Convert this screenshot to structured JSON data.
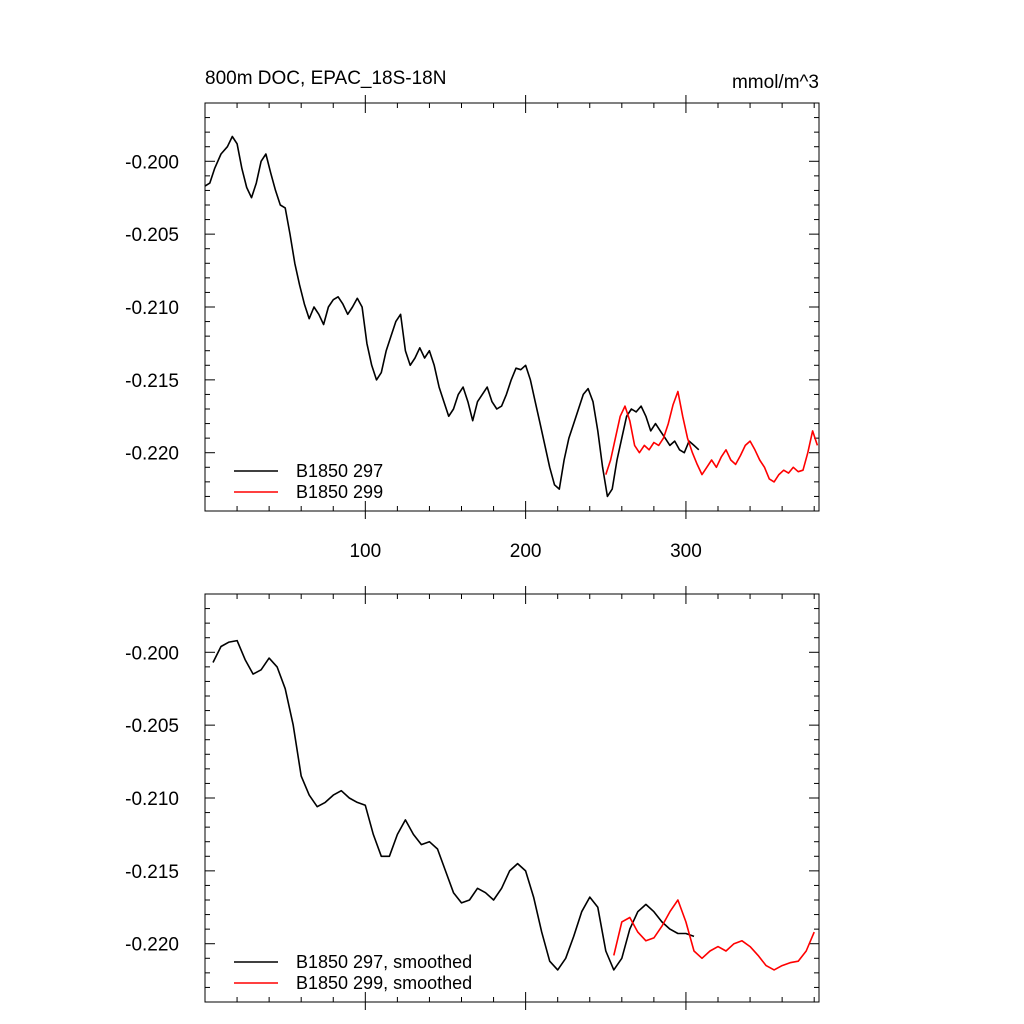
{
  "figure": {
    "title_left": "800m DOC, EPAC_18S-18N",
    "title_right": "mmol/m^3"
  },
  "colors": {
    "series1": "#000000",
    "series2": "#ff0000"
  },
  "chart_data": [
    {
      "type": "line",
      "title": "800m DOC, EPAC_18S-18N",
      "units": "mmol/m^3",
      "xlim": [
        0,
        383
      ],
      "ylim": [
        -0.224,
        -0.196
      ],
      "xticks": [
        100,
        200,
        300
      ],
      "yticks": [
        -0.2,
        -0.205,
        -0.21,
        -0.215,
        -0.22
      ],
      "ytick_labels": [
        "-0.200",
        "-0.205",
        "-0.210",
        "-0.215",
        "-0.220"
      ],
      "xtick_labels": [
        "100",
        "200",
        "300"
      ],
      "legend_position": "bottom-left",
      "series": [
        {
          "name": "B1850 297",
          "color": "#000000",
          "x": [
            0,
            3,
            6,
            10,
            14,
            17,
            20,
            23,
            26,
            29,
            32,
            35,
            38,
            41,
            44,
            47,
            50,
            53,
            56,
            59,
            62,
            65,
            68,
            71,
            74,
            77,
            80,
            83,
            86,
            89,
            92,
            95,
            98,
            101,
            104,
            107,
            110,
            113,
            116,
            119,
            122,
            125,
            128,
            131,
            134,
            137,
            140,
            143,
            146,
            149,
            152,
            155,
            158,
            161,
            164,
            167,
            170,
            173,
            176,
            179,
            182,
            185,
            188,
            191,
            194,
            197,
            200,
            203,
            206,
            209,
            212,
            215,
            218,
            221,
            224,
            227,
            230,
            233,
            236,
            239,
            242,
            245,
            248,
            251,
            254,
            257,
            260,
            263,
            266,
            269,
            272,
            275,
            278,
            281,
            284,
            287,
            290,
            293,
            296,
            299,
            302,
            305,
            308
          ],
          "y": [
            -0.2017,
            -0.2015,
            -0.2005,
            -0.1995,
            -0.199,
            -0.1983,
            -0.1988,
            -0.2005,
            -0.2018,
            -0.2025,
            -0.2015,
            -0.2,
            -0.1995,
            -0.2008,
            -0.202,
            -0.203,
            -0.2032,
            -0.205,
            -0.207,
            -0.2085,
            -0.2098,
            -0.2108,
            -0.21,
            -0.2105,
            -0.2112,
            -0.21,
            -0.2095,
            -0.2093,
            -0.2098,
            -0.2105,
            -0.21,
            -0.2094,
            -0.21,
            -0.2125,
            -0.214,
            -0.215,
            -0.2145,
            -0.213,
            -0.212,
            -0.211,
            -0.2105,
            -0.213,
            -0.214,
            -0.2135,
            -0.2128,
            -0.2135,
            -0.213,
            -0.214,
            -0.2155,
            -0.2165,
            -0.2175,
            -0.217,
            -0.216,
            -0.2155,
            -0.2165,
            -0.2178,
            -0.2165,
            -0.216,
            -0.2155,
            -0.2165,
            -0.217,
            -0.2168,
            -0.216,
            -0.215,
            -0.2142,
            -0.2143,
            -0.214,
            -0.215,
            -0.2165,
            -0.218,
            -0.2195,
            -0.221,
            -0.2222,
            -0.2225,
            -0.2205,
            -0.219,
            -0.218,
            -0.217,
            -0.216,
            -0.2156,
            -0.2165,
            -0.2185,
            -0.221,
            -0.223,
            -0.2225,
            -0.2205,
            -0.219,
            -0.2175,
            -0.217,
            -0.2172,
            -0.2168,
            -0.2175,
            -0.2185,
            -0.218,
            -0.2185,
            -0.219,
            -0.2195,
            -0.2192,
            -0.2198,
            -0.22,
            -0.2192,
            -0.2195,
            -0.2198
          ]
        },
        {
          "name": "B1850 299",
          "color": "#ff0000",
          "x": [
            250,
            253,
            256,
            259,
            262,
            265,
            268,
            271,
            274,
            277,
            280,
            283,
            286,
            289,
            292,
            295,
            298,
            301,
            304,
            307,
            310,
            313,
            316,
            319,
            322,
            325,
            328,
            331,
            334,
            337,
            340,
            343,
            346,
            349,
            352,
            355,
            358,
            361,
            364,
            367,
            370,
            373,
            376,
            379,
            382
          ],
          "y": [
            -0.2215,
            -0.2205,
            -0.219,
            -0.2175,
            -0.2168,
            -0.2178,
            -0.2195,
            -0.22,
            -0.2195,
            -0.2198,
            -0.2193,
            -0.2195,
            -0.219,
            -0.218,
            -0.2167,
            -0.2158,
            -0.2175,
            -0.219,
            -0.22,
            -0.2208,
            -0.2215,
            -0.221,
            -0.2205,
            -0.221,
            -0.2203,
            -0.2198,
            -0.2205,
            -0.2208,
            -0.2202,
            -0.2195,
            -0.2192,
            -0.2198,
            -0.2205,
            -0.221,
            -0.2218,
            -0.222,
            -0.2215,
            -0.2212,
            -0.2214,
            -0.221,
            -0.2213,
            -0.2212,
            -0.22,
            -0.2185,
            -0.2195
          ]
        }
      ]
    },
    {
      "type": "line",
      "xlim": [
        0,
        383
      ],
      "ylim": [
        -0.224,
        -0.196
      ],
      "xticks": [
        100,
        200,
        300
      ],
      "yticks": [
        -0.2,
        -0.205,
        -0.21,
        -0.215,
        -0.22
      ],
      "ytick_labels": [
        "-0.200",
        "-0.205",
        "-0.210",
        "-0.215",
        "-0.220"
      ],
      "legend_position": "bottom-left",
      "series": [
        {
          "name": "B1850 297, smoothed",
          "color": "#000000",
          "x": [
            5,
            10,
            15,
            20,
            25,
            30,
            35,
            40,
            45,
            50,
            55,
            60,
            65,
            70,
            75,
            80,
            85,
            90,
            95,
            100,
            105,
            110,
            115,
            120,
            125,
            130,
            135,
            140,
            145,
            150,
            155,
            160,
            165,
            170,
            175,
            180,
            185,
            190,
            195,
            200,
            205,
            210,
            215,
            220,
            225,
            230,
            235,
            240,
            245,
            250,
            255,
            260,
            265,
            270,
            275,
            280,
            285,
            290,
            295,
            300,
            305
          ],
          "y": [
            -0.2007,
            -0.1996,
            -0.1993,
            -0.1992,
            -0.2005,
            -0.2015,
            -0.2012,
            -0.2004,
            -0.201,
            -0.2025,
            -0.205,
            -0.2085,
            -0.2098,
            -0.2106,
            -0.2103,
            -0.2098,
            -0.2095,
            -0.21,
            -0.2103,
            -0.2105,
            -0.2125,
            -0.214,
            -0.214,
            -0.2125,
            -0.2115,
            -0.2125,
            -0.2132,
            -0.213,
            -0.2135,
            -0.215,
            -0.2165,
            -0.2172,
            -0.217,
            -0.2162,
            -0.2165,
            -0.217,
            -0.2162,
            -0.215,
            -0.2145,
            -0.215,
            -0.2168,
            -0.2192,
            -0.2212,
            -0.2218,
            -0.221,
            -0.2195,
            -0.2178,
            -0.2168,
            -0.2175,
            -0.2205,
            -0.2218,
            -0.221,
            -0.219,
            -0.2178,
            -0.2173,
            -0.2178,
            -0.2185,
            -0.219,
            -0.2193,
            -0.2193,
            -0.2195
          ]
        },
        {
          "name": "B1850 299, smoothed",
          "color": "#ff0000",
          "x": [
            255,
            260,
            265,
            270,
            275,
            280,
            285,
            290,
            295,
            300,
            305,
            310,
            315,
            320,
            325,
            330,
            335,
            340,
            345,
            350,
            355,
            360,
            365,
            370,
            375,
            380
          ],
          "y": [
            -0.2208,
            -0.2185,
            -0.2182,
            -0.2192,
            -0.2198,
            -0.2196,
            -0.2188,
            -0.2178,
            -0.217,
            -0.2185,
            -0.2205,
            -0.221,
            -0.2205,
            -0.2202,
            -0.2205,
            -0.22,
            -0.2198,
            -0.2202,
            -0.2208,
            -0.2215,
            -0.2218,
            -0.2215,
            -0.2213,
            -0.2212,
            -0.2205,
            -0.2192
          ]
        }
      ]
    }
  ]
}
